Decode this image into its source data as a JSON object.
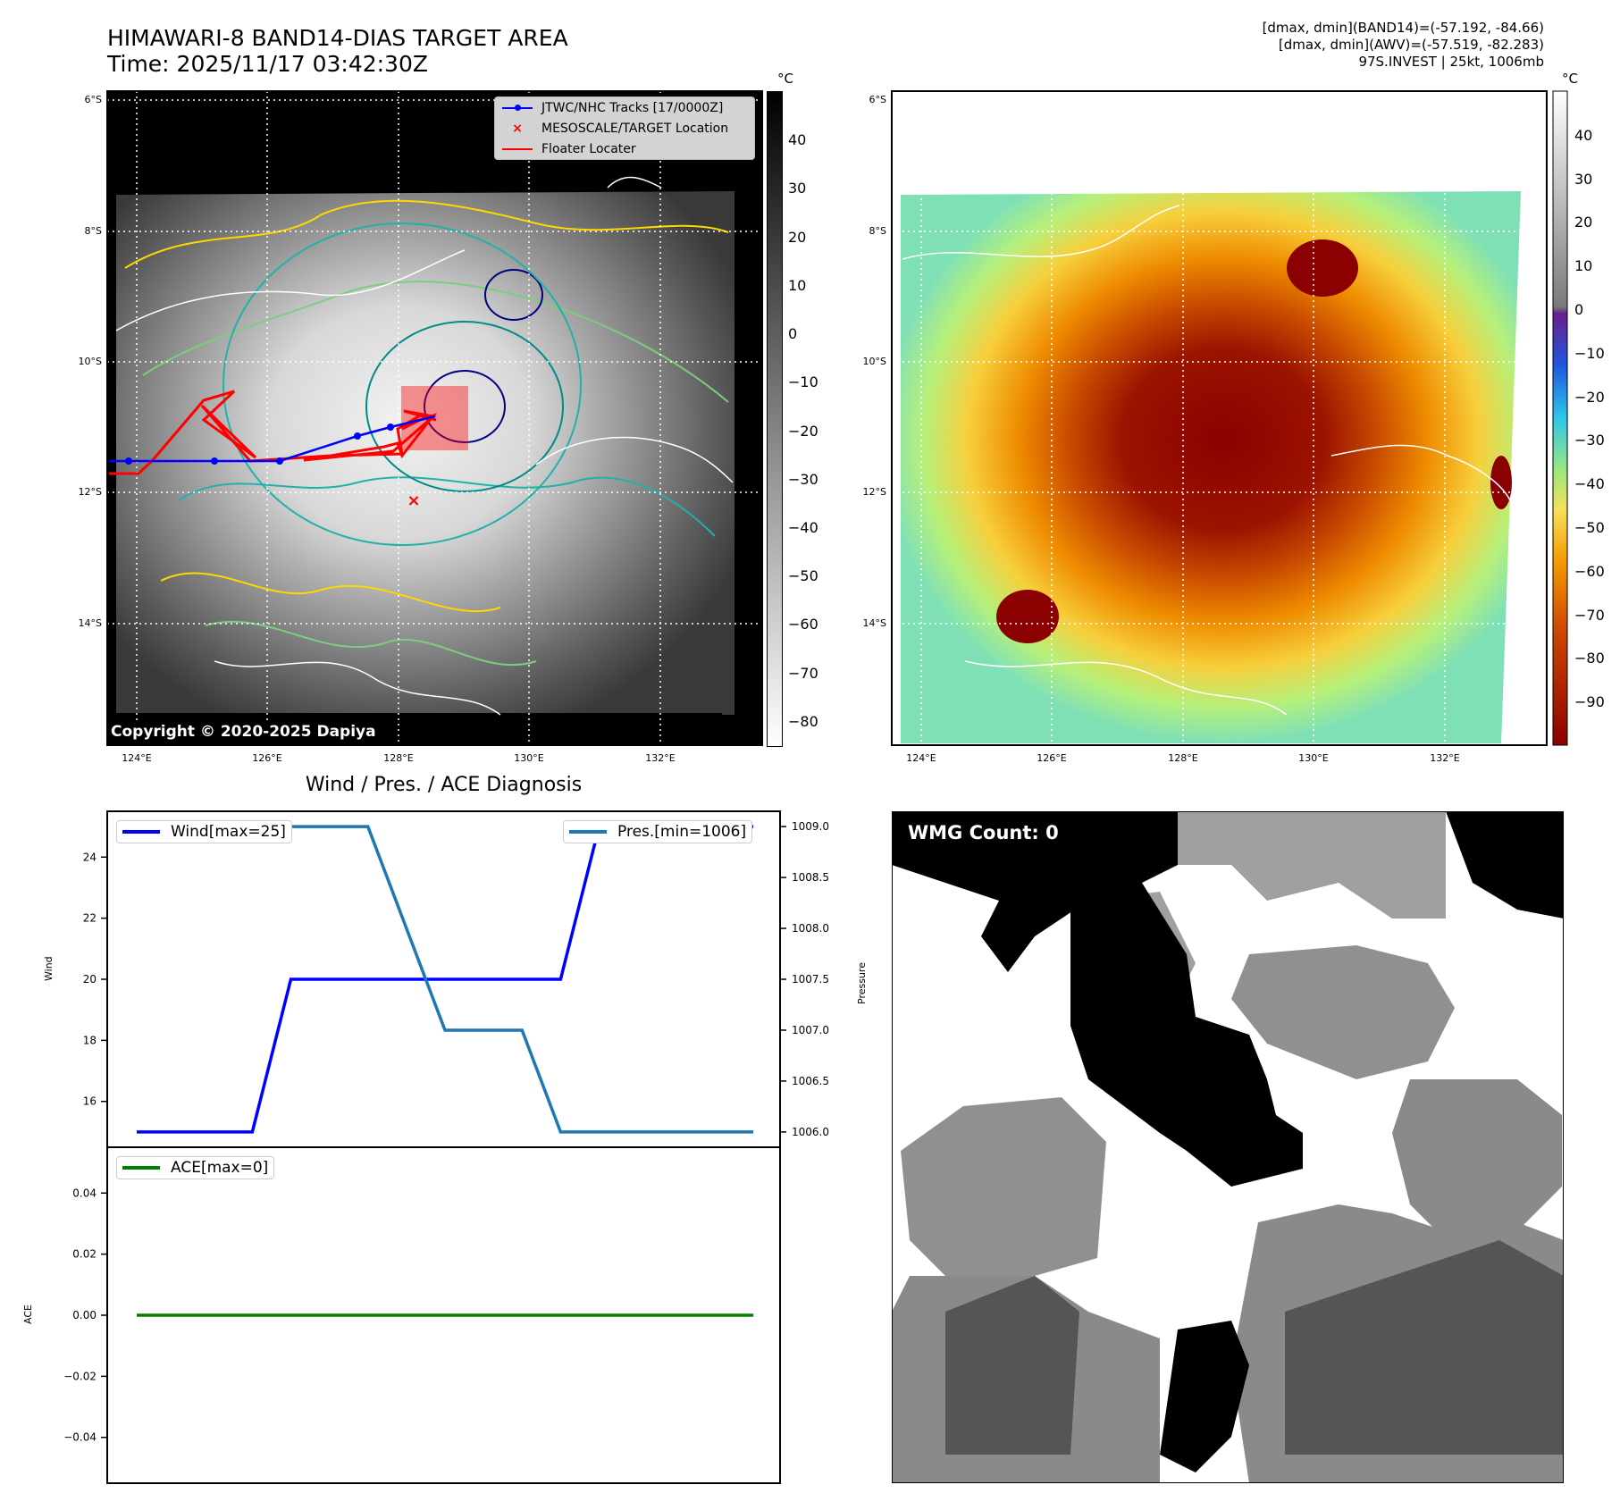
{
  "header": {
    "title_line1": "HIMAWARI-8 BAND14-DIAS TARGET AREA",
    "title_line2": "Time: 2025/11/17 03:42:30Z",
    "stats_line1": "[dmax, dmin](BAND14)=(-57.192, -84.66)",
    "stats_line2": "[dmax, dmin](AWV)=(-57.519, -82.283)",
    "stats_line3": "97S.INVEST | 25kt, 1006mb"
  },
  "maps": {
    "lat_ticks": [
      "6°S",
      "8°S",
      "10°S",
      "12°S",
      "14°S"
    ],
    "lon_ticks": [
      "124°E",
      "126°E",
      "128°E",
      "130°E",
      "132°E"
    ],
    "copyright": "Copyright © 2020-2025 Dapiya"
  },
  "left_map": {
    "legend": {
      "tracks": "JTWC/NHC Tracks [17/0000Z]",
      "target": "MESOSCALE/TARGET Location",
      "floater": "Floater Locater"
    },
    "track_color": "#0000ff",
    "floater_color": "#ff0000",
    "colorbar": {
      "unit": "°C",
      "ticks": [
        "40",
        "30",
        "20",
        "10",
        "0",
        "−10",
        "−20",
        "−30",
        "−40",
        "−50",
        "−60",
        "−70",
        "−80"
      ],
      "range": [
        -85,
        50
      ]
    }
  },
  "right_map": {
    "colorbar": {
      "unit": "°C",
      "ticks": [
        "40",
        "30",
        "20",
        "10",
        "0",
        "−10",
        "−20",
        "−30",
        "−40",
        "−50",
        "−60",
        "−70",
        "−80",
        "−90"
      ],
      "range": [
        -100,
        50
      ]
    }
  },
  "diagnosis": {
    "title": "Wind / Pres. / ACE Diagnosis",
    "wind_ylabel": "Wind",
    "pressure_ylabel": "Pressure",
    "ace_ylabel": "ACE",
    "wind_legend": "Wind[max=25]",
    "pres_legend": "Pres.[min=1006]",
    "ace_legend": "ACE[max=0]",
    "wind_ticks": [
      "24",
      "22",
      "20",
      "18",
      "16"
    ],
    "pres_ticks": [
      "1009.0",
      "1008.5",
      "1008.0",
      "1007.5",
      "1007.0",
      "1006.5",
      "1006.0"
    ],
    "ace_ticks": [
      "0.04",
      "0.02",
      "0.00",
      "−0.02",
      "−0.04"
    ]
  },
  "wmg": {
    "label": "WMG Count: 0"
  },
  "chart_data": [
    {
      "type": "line",
      "title": "Wind / Pres. / ACE Diagnosis",
      "ylabel": "Wind",
      "ylim": [
        14.5,
        25.5
      ],
      "series": [
        {
          "name": "Wind[max=25]",
          "color": "#0000ff",
          "x": [
            0,
            3,
            4,
            11,
            12,
            16
          ],
          "values": [
            15,
            15,
            20,
            20,
            25,
            25
          ]
        }
      ]
    },
    {
      "type": "line",
      "ylabel": "Pressure",
      "ylim": [
        1005.85,
        1009.15
      ],
      "series": [
        {
          "name": "Pres.[min=1006]",
          "color": "#1f77b4",
          "x": [
            0,
            6,
            8,
            10,
            11,
            16
          ],
          "values": [
            1009,
            1009,
            1007,
            1007,
            1006,
            1006
          ]
        }
      ]
    },
    {
      "type": "line",
      "ylabel": "ACE",
      "ylim": [
        -0.055,
        0.055
      ],
      "series": [
        {
          "name": "ACE[max=0]",
          "color": "#008000",
          "x": [
            0,
            16
          ],
          "values": [
            0,
            0
          ]
        }
      ]
    }
  ]
}
